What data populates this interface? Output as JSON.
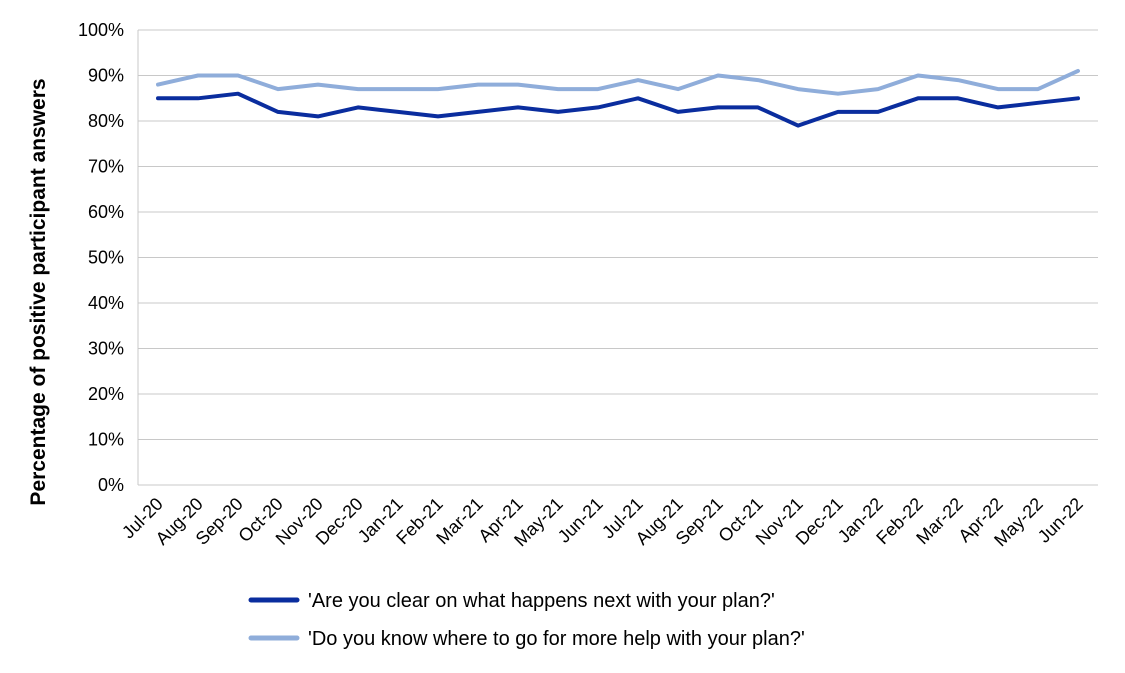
{
  "chart_data": {
    "type": "line",
    "ylabel": "Percentage of positive participant answers",
    "xlabel": "",
    "categories": [
      "Jul-20",
      "Aug-20",
      "Sep-20",
      "Oct-20",
      "Nov-20",
      "Dec-20",
      "Jan-21",
      "Feb-21",
      "Mar-21",
      "Apr-21",
      "May-21",
      "Jun-21",
      "Jul-21",
      "Aug-21",
      "Sep-21",
      "Oct-21",
      "Nov-21",
      "Dec-21",
      "Jan-22",
      "Feb-22",
      "Mar-22",
      "Apr-22",
      "May-22",
      "Jun-22"
    ],
    "ylim": [
      0,
      100
    ],
    "yticks": [
      "0%",
      "10%",
      "20%",
      "30%",
      "40%",
      "50%",
      "60%",
      "70%",
      "80%",
      "90%",
      "100%"
    ],
    "grid": true,
    "legend_position": "bottom",
    "series": [
      {
        "name": "'Are you clear on what happens next with your plan?'",
        "color": "#0a2d9e",
        "values": [
          85,
          85,
          86,
          82,
          81,
          83,
          82,
          81,
          82,
          83,
          82,
          83,
          85,
          82,
          83,
          83,
          79,
          82,
          82,
          85,
          85,
          83,
          84,
          85
        ]
      },
      {
        "name": "'Do you know where to go for more help with your plan?'",
        "color": "#8fadda",
        "values": [
          88,
          90,
          90,
          87,
          88,
          87,
          87,
          87,
          88,
          88,
          87,
          87,
          89,
          87,
          90,
          89,
          87,
          86,
          87,
          90,
          89,
          87,
          87,
          91
        ]
      }
    ]
  }
}
